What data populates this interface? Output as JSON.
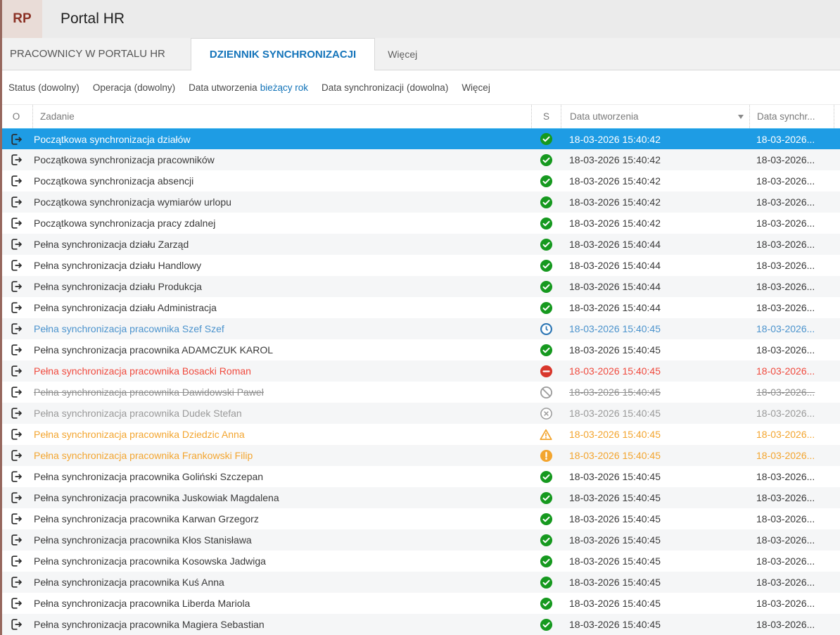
{
  "app": {
    "logo": "RP",
    "title": "Portal HR"
  },
  "tabs": [
    {
      "label": "PRACOWNICY W PORTALU HR",
      "active": false
    },
    {
      "label": "DZIENNIK SYNCHRONIZACJI",
      "active": true
    },
    {
      "label": "Więcej",
      "active": false
    }
  ],
  "filter_bar": {
    "items": [
      {
        "label": "Status",
        "value": "(dowolny)"
      },
      {
        "label": "Operacja",
        "value": "(dowolny)"
      },
      {
        "label": "Data utworzenia",
        "value": "bieżący rok"
      },
      {
        "label": "Data synchronizacji",
        "value": "(dowolna)"
      }
    ],
    "more": "Więcej"
  },
  "colors": {
    "selected_row_bg": "#1e9ce4",
    "row_alt_bg": "#f5f6f7",
    "left_bar": "#96675d",
    "active_tab_text": "#1474ba",
    "filter_accent": "#1273b8",
    "operation_icon": "#2b2b2b",
    "text_blue": "#4b93cd",
    "text_red": "#f04a3e",
    "text_gray": "#9a9a9a",
    "text_orange": "#f3a52f"
  },
  "table": {
    "columns": [
      "O",
      "Zadanie",
      "S",
      "Data utworzenia",
      "Data synchr..."
    ],
    "operation_icon": "export-arrow-icon",
    "statuses": {
      "success": {
        "icon": "check-circle-icon",
        "color": "#16991f"
      },
      "pending": {
        "icon": "clock-icon",
        "color": "#2e77b5"
      },
      "error": {
        "icon": "minus-circle-icon",
        "color": "#d8372c"
      },
      "cancelled": {
        "icon": "slash-circle-icon",
        "color": "#9b9b9b"
      },
      "aborted": {
        "icon": "x-circle-icon",
        "color": "#9b9b9b"
      },
      "warning": {
        "icon": "warning-triangle-icon",
        "color": "#f3a52f"
      },
      "alert": {
        "icon": "exclamation-circle-icon",
        "color": "#f3a52f"
      }
    },
    "rows": [
      {
        "task": "Początkowa synchronizacja działów",
        "status": "success",
        "created": "18-03-2026 15:40:42",
        "synced": "18-03-2026...",
        "style": "selected",
        "selected": true
      },
      {
        "task": "Początkowa synchronizacja pracowników",
        "status": "success",
        "created": "18-03-2026 15:40:42",
        "synced": "18-03-2026...",
        "style": "normal"
      },
      {
        "task": "Początkowa synchronizacja absencji",
        "status": "success",
        "created": "18-03-2026 15:40:42",
        "synced": "18-03-2026...",
        "style": "normal"
      },
      {
        "task": "Początkowa synchronizacja wymiarów urlopu",
        "status": "success",
        "created": "18-03-2026 15:40:42",
        "synced": "18-03-2026...",
        "style": "normal"
      },
      {
        "task": "Początkowa synchronizacja pracy zdalnej",
        "status": "success",
        "created": "18-03-2026 15:40:42",
        "synced": "18-03-2026...",
        "style": "normal"
      },
      {
        "task": "Pełna synchronizacja działu Zarząd",
        "status": "success",
        "created": "18-03-2026 15:40:44",
        "synced": "18-03-2026...",
        "style": "normal"
      },
      {
        "task": "Pełna synchronizacja działu Handlowy",
        "status": "success",
        "created": "18-03-2026 15:40:44",
        "synced": "18-03-2026...",
        "style": "normal"
      },
      {
        "task": "Pełna synchronizacja działu Produkcja",
        "status": "success",
        "created": "18-03-2026 15:40:44",
        "synced": "18-03-2026...",
        "style": "normal"
      },
      {
        "task": "Pełna synchronizacja działu Administracja",
        "status": "success",
        "created": "18-03-2026 15:40:44",
        "synced": "18-03-2026...",
        "style": "normal"
      },
      {
        "task": "Pełna synchronizacja pracownika Szef Szef",
        "status": "pending",
        "created": "18-03-2026 15:40:45",
        "synced": "18-03-2026...",
        "style": "blue"
      },
      {
        "task": "Pełna synchronizacja pracownika ADAMCZUK KAROL",
        "status": "success",
        "created": "18-03-2026 15:40:45",
        "synced": "18-03-2026...",
        "style": "normal"
      },
      {
        "task": "Pełna synchronizacja pracownika Bosacki Roman",
        "status": "error",
        "created": "18-03-2026 15:40:45",
        "synced": "18-03-2026...",
        "style": "red"
      },
      {
        "task": "Pełna synchronizacja pracownika Dawidowski Paweł",
        "status": "cancelled",
        "created": "18-03-2026 15:40:45",
        "synced": "18-03-2026...",
        "style": "gray-strike"
      },
      {
        "task": "Pełna synchronizacja pracownika Dudek Stefan",
        "status": "aborted",
        "created": "18-03-2026 15:40:45",
        "synced": "18-03-2026...",
        "style": "gray"
      },
      {
        "task": "Pełna synchronizacja pracownika Dziedzic Anna",
        "status": "warning",
        "created": "18-03-2026 15:40:45",
        "synced": "18-03-2026...",
        "style": "orange"
      },
      {
        "task": "Pełna synchronizacja pracownika Frankowski Filip",
        "status": "alert",
        "created": "18-03-2026 15:40:45",
        "synced": "18-03-2026...",
        "style": "orange"
      },
      {
        "task": "Pełna synchronizacja pracownika Goliński Szczepan",
        "status": "success",
        "created": "18-03-2026 15:40:45",
        "synced": "18-03-2026...",
        "style": "normal"
      },
      {
        "task": "Pełna synchronizacja pracownika Juskowiak Magdalena",
        "status": "success",
        "created": "18-03-2026 15:40:45",
        "synced": "18-03-2026...",
        "style": "normal"
      },
      {
        "task": "Pełna synchronizacja pracownika Karwan Grzegorz",
        "status": "success",
        "created": "18-03-2026 15:40:45",
        "synced": "18-03-2026...",
        "style": "normal"
      },
      {
        "task": "Pełna synchronizacja pracownika Kłos Stanisława",
        "status": "success",
        "created": "18-03-2026 15:40:45",
        "synced": "18-03-2026...",
        "style": "normal"
      },
      {
        "task": "Pełna synchronizacja pracownika Kosowska Jadwiga",
        "status": "success",
        "created": "18-03-2026 15:40:45",
        "synced": "18-03-2026...",
        "style": "normal"
      },
      {
        "task": "Pełna synchronizacja pracownika Kuś Anna",
        "status": "success",
        "created": "18-03-2026 15:40:45",
        "synced": "18-03-2026...",
        "style": "normal"
      },
      {
        "task": "Pełna synchronizacja pracownika Liberda Mariola",
        "status": "success",
        "created": "18-03-2026 15:40:45",
        "synced": "18-03-2026...",
        "style": "normal"
      },
      {
        "task": "Pełna synchronizacja pracownika Magiera Sebastian",
        "status": "success",
        "created": "18-03-2026 15:40:45",
        "synced": "18-03-2026...",
        "style": "normal"
      }
    ]
  }
}
